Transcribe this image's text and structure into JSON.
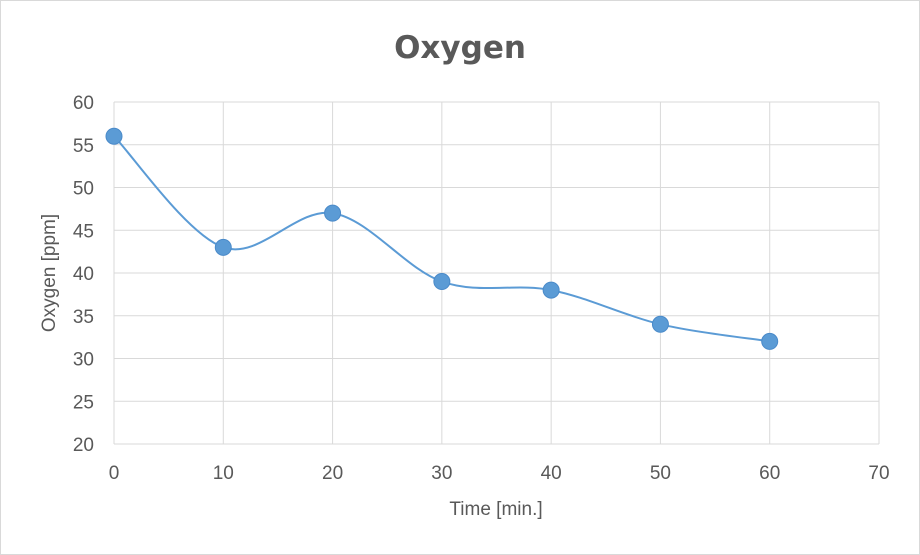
{
  "chart_data": {
    "type": "line",
    "title": "Oxygen",
    "xlabel": "Time [min.]",
    "ylabel": "Oxygen [ppm]",
    "xlim": [
      0,
      70
    ],
    "ylim": [
      20,
      60
    ],
    "x_ticks": [
      0,
      10,
      20,
      30,
      40,
      50,
      60,
      70
    ],
    "y_ticks": [
      20,
      25,
      30,
      35,
      40,
      45,
      50,
      55,
      60
    ],
    "grid": true,
    "smooth": true,
    "colors": {
      "series": "#5b9bd5",
      "grid": "#d9d9d9",
      "text": "#595959"
    },
    "series": [
      {
        "x": [
          0,
          10,
          20,
          30,
          40,
          50,
          60
        ],
        "y": [
          56,
          43,
          47,
          39,
          38,
          34,
          32
        ]
      }
    ]
  }
}
